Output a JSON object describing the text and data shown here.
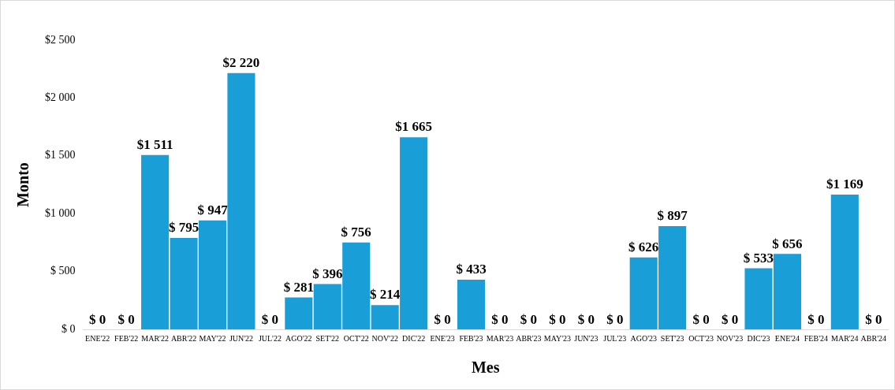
{
  "chart_data": {
    "type": "bar",
    "xlabel": "Mes",
    "ylabel": "Monto",
    "categories": [
      "ENE'22",
      "FEB'22",
      "MAR'22",
      "ABR'22",
      "MAY'22",
      "JUN'22",
      "JUL'22",
      "AGO'22",
      "SET'22",
      "OCT'22",
      "NOV'22",
      "DIC'22",
      "ENE'23",
      "FEB'23",
      "MAR'23",
      "ABR'23",
      "MAY'23",
      "JUN'23",
      "JUL'23",
      "AGO'23",
      "SET'23",
      "OCT'23",
      "NOV'23",
      "DIC'23",
      "ENE'24",
      "FEB'24",
      "MAR'24",
      "ABR'24"
    ],
    "values": [
      0,
      0,
      1511,
      795,
      947,
      2220,
      0,
      281,
      396,
      756,
      214,
      1665,
      0,
      433,
      0,
      0,
      0,
      0,
      0,
      626,
      897,
      0,
      0,
      533,
      656,
      0,
      1169,
      0
    ],
    "value_labels": [
      "$ 0",
      "$ 0",
      "$1 511",
      "$ 795",
      "$ 947",
      "$2 220",
      "$ 0",
      "$ 281",
      "$ 396",
      "$ 756",
      "$ 214",
      "$1 665",
      "$ 0",
      "$ 433",
      "$ 0",
      "$ 0",
      "$ 0",
      "$ 0",
      "$ 0",
      "$ 626",
      "$ 897",
      "$ 0",
      "$ 0",
      "$ 533",
      "$ 656",
      "$ 0",
      "$1 169",
      "$ 0"
    ],
    "color": "#1a9ed8",
    "ylim": [
      0,
      2500
    ],
    "yticks": [
      {
        "value": 0,
        "label": "$ 0"
      },
      {
        "value": 500,
        "label": "$ 500"
      },
      {
        "value": 1000,
        "label": "$1 000"
      },
      {
        "value": 1500,
        "label": "$1 500"
      },
      {
        "value": 2000,
        "label": "$2 000"
      },
      {
        "value": 2500,
        "label": "$2 500"
      }
    ],
    "grid": false,
    "legend": false
  }
}
